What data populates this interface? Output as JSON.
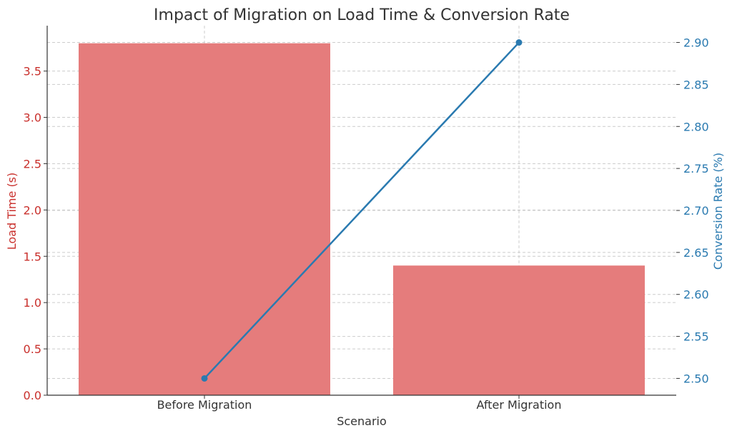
{
  "chart_data": {
    "type": "bar",
    "title": "Impact of Migration on Load Time & Conversion Rate",
    "xlabel": "Scenario",
    "categories": [
      "Before Migration",
      "After Migration"
    ],
    "bar_series": {
      "name": "Load Time (s)",
      "values": [
        3.8,
        1.4
      ],
      "color": "#e57c7c"
    },
    "line_series": {
      "name": "Conversion Rate (%)",
      "values": [
        2.5,
        2.9
      ],
      "color": "#2a7ab0"
    },
    "y_left": {
      "label": "Load Time (s)",
      "ylim": [
        0,
        3.99
      ],
      "ticks": [
        "0.0",
        "0.5",
        "1.0",
        "1.5",
        "2.0",
        "2.5",
        "3.0",
        "3.5"
      ],
      "tick_values": [
        0,
        0.5,
        1.0,
        1.5,
        2.0,
        2.5,
        3.0,
        3.5
      ],
      "color": "#c9302c"
    },
    "y_right": {
      "label": "Conversion Rate (%)",
      "ylim": [
        2.48,
        2.92
      ],
      "ticks": [
        "2.50",
        "2.55",
        "2.60",
        "2.65",
        "2.70",
        "2.75",
        "2.80",
        "2.85",
        "2.90"
      ],
      "tick_values": [
        2.5,
        2.55,
        2.6,
        2.65,
        2.7,
        2.75,
        2.8,
        2.85,
        2.9
      ],
      "color": "#2a7ab0"
    },
    "grid": true,
    "legend": "none"
  }
}
